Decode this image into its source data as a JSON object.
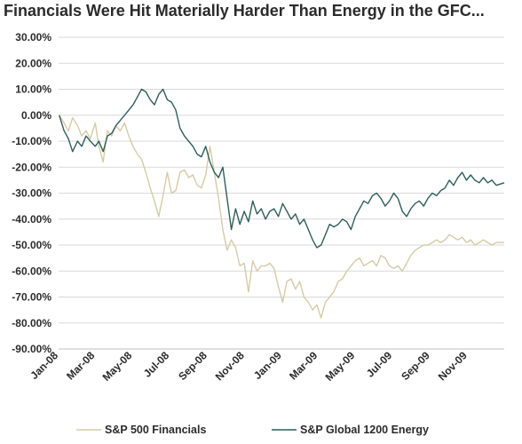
{
  "chart_data": {
    "type": "line",
    "title": "Financials Were Hit Materially Harder Than Energy in the GFC...",
    "xlabel": "",
    "ylabel": "",
    "ylim": [
      -90,
      30
    ],
    "y_ticks": [
      "30.00%",
      "20.00%",
      "10.00%",
      "0.00%",
      "-10.00%",
      "-20.00%",
      "-30.00%",
      "-40.00%",
      "-50.00%",
      "-60.00%",
      "-70.00%",
      "-80.00%",
      "-90.00%"
    ],
    "y_tick_values": [
      30,
      20,
      10,
      0,
      -10,
      -20,
      -30,
      -40,
      -50,
      -60,
      -70,
      -80,
      -90
    ],
    "x_ticks": [
      "Jan-08",
      "Mar-08",
      "May-08",
      "Jul-08",
      "Sep-08",
      "Nov-08",
      "Jan-09",
      "Mar-09",
      "May-09",
      "Jul-09",
      "Sep-09",
      "Nov-09"
    ],
    "x_tick_values": [
      "2008-01",
      "2008-03",
      "2008-05",
      "2008-07",
      "2008-09",
      "2008-11",
      "2009-01",
      "2009-03",
      "2009-05",
      "2009-07",
      "2009-09",
      "2009-11"
    ],
    "grid": "horizontal",
    "legend_position": "bottom",
    "colors": {
      "financials": "#d5cba6",
      "energy": "#2f5e5a",
      "grid": "#d9d9d9"
    },
    "series": [
      {
        "name": "S&P 500 Financials",
        "x": [
          "2008-01-02",
          "2008-01-10",
          "2008-01-17",
          "2008-01-24",
          "2008-02-01",
          "2008-02-08",
          "2008-02-15",
          "2008-02-22",
          "2008-03-01",
          "2008-03-07",
          "2008-03-14",
          "2008-03-21",
          "2008-03-28",
          "2008-04-04",
          "2008-04-11",
          "2008-04-18",
          "2008-04-25",
          "2008-05-02",
          "2008-05-09",
          "2008-05-16",
          "2008-05-23",
          "2008-05-30",
          "2008-06-06",
          "2008-06-13",
          "2008-06-20",
          "2008-06-27",
          "2008-07-04",
          "2008-07-11",
          "2008-07-18",
          "2008-07-25",
          "2008-08-01",
          "2008-08-08",
          "2008-08-15",
          "2008-08-22",
          "2008-08-29",
          "2008-09-05",
          "2008-09-12",
          "2008-09-19",
          "2008-09-26",
          "2008-10-03",
          "2008-10-10",
          "2008-10-17",
          "2008-10-24",
          "2008-10-31",
          "2008-11-07",
          "2008-11-14",
          "2008-11-21",
          "2008-11-28",
          "2008-12-05",
          "2008-12-12",
          "2008-12-19",
          "2008-12-26",
          "2009-01-02",
          "2009-01-09",
          "2009-01-16",
          "2009-01-23",
          "2009-01-30",
          "2009-02-06",
          "2009-02-13",
          "2009-02-20",
          "2009-02-27",
          "2009-03-06",
          "2009-03-13",
          "2009-03-20",
          "2009-03-27",
          "2009-04-03",
          "2009-04-10",
          "2009-04-17",
          "2009-04-24",
          "2009-05-01",
          "2009-05-08",
          "2009-05-15",
          "2009-05-22",
          "2009-05-29",
          "2009-06-05",
          "2009-06-12",
          "2009-06-19",
          "2009-06-26",
          "2009-07-03",
          "2009-07-10",
          "2009-07-17",
          "2009-07-24",
          "2009-07-31",
          "2009-08-07",
          "2009-08-14",
          "2009-08-21",
          "2009-08-28",
          "2009-09-04",
          "2009-09-11",
          "2009-09-18",
          "2009-09-25",
          "2009-10-02",
          "2009-10-09",
          "2009-10-16",
          "2009-10-23",
          "2009-10-30",
          "2009-11-06",
          "2009-11-13",
          "2009-11-20",
          "2009-11-27",
          "2009-12-04",
          "2009-12-11",
          "2009-12-18",
          "2009-12-31"
        ],
        "values": [
          0,
          -3,
          -6,
          -1,
          -4,
          -8,
          -6,
          -9,
          -3,
          -12,
          -18,
          -6,
          -8,
          -4,
          -6,
          -3,
          -8,
          -12,
          -15,
          -17,
          -22,
          -28,
          -33,
          -39,
          -31,
          -22,
          -30,
          -29,
          -22,
          -21,
          -24,
          -23,
          -27,
          -28,
          -23,
          -12,
          -22,
          -32,
          -44,
          -52,
          -48,
          -51,
          -58,
          -57,
          -68,
          -56,
          -60,
          -58,
          -58,
          -57,
          -59,
          -66,
          -72,
          -64,
          -63,
          -67,
          -64,
          -70,
          -72,
          -75,
          -73,
          -78,
          -72,
          -70,
          -68,
          -64,
          -63,
          -60,
          -58,
          -56,
          -55,
          -58,
          -57,
          -56,
          -58,
          -54,
          -55,
          -58,
          -59,
          -58,
          -60,
          -57,
          -54,
          -52,
          -51,
          -50,
          -50,
          -49,
          -48,
          -49,
          -48,
          -46,
          -47,
          -48,
          -47,
          -49,
          -48,
          -50,
          -49,
          -48,
          -49,
          -50,
          -49,
          -49
        ]
      },
      {
        "name": "S&P Global 1200 Energy",
        "x": [
          "2008-01-02",
          "2008-01-10",
          "2008-01-17",
          "2008-01-24",
          "2008-02-01",
          "2008-02-08",
          "2008-02-15",
          "2008-02-22",
          "2008-03-01",
          "2008-03-07",
          "2008-03-14",
          "2008-03-21",
          "2008-03-28",
          "2008-04-04",
          "2008-04-11",
          "2008-04-18",
          "2008-04-25",
          "2008-05-02",
          "2008-05-09",
          "2008-05-16",
          "2008-05-23",
          "2008-05-30",
          "2008-06-06",
          "2008-06-13",
          "2008-06-20",
          "2008-06-27",
          "2008-07-04",
          "2008-07-11",
          "2008-07-18",
          "2008-07-25",
          "2008-08-01",
          "2008-08-08",
          "2008-08-15",
          "2008-08-22",
          "2008-08-29",
          "2008-09-05",
          "2008-09-12",
          "2008-09-19",
          "2008-09-26",
          "2008-10-03",
          "2008-10-10",
          "2008-10-17",
          "2008-10-24",
          "2008-10-31",
          "2008-11-07",
          "2008-11-14",
          "2008-11-21",
          "2008-11-28",
          "2008-12-05",
          "2008-12-12",
          "2008-12-19",
          "2008-12-26",
          "2009-01-02",
          "2009-01-09",
          "2009-01-16",
          "2009-01-23",
          "2009-01-30",
          "2009-02-06",
          "2009-02-13",
          "2009-02-20",
          "2009-02-27",
          "2009-03-06",
          "2009-03-13",
          "2009-03-20",
          "2009-03-27",
          "2009-04-03",
          "2009-04-10",
          "2009-04-17",
          "2009-04-24",
          "2009-05-01",
          "2009-05-08",
          "2009-05-15",
          "2009-05-22",
          "2009-05-29",
          "2009-06-05",
          "2009-06-12",
          "2009-06-19",
          "2009-06-26",
          "2009-07-03",
          "2009-07-10",
          "2009-07-17",
          "2009-07-24",
          "2009-07-31",
          "2009-08-07",
          "2009-08-14",
          "2009-08-21",
          "2009-08-28",
          "2009-09-04",
          "2009-09-11",
          "2009-09-18",
          "2009-09-25",
          "2009-10-02",
          "2009-10-09",
          "2009-10-16",
          "2009-10-23",
          "2009-10-30",
          "2009-11-06",
          "2009-11-13",
          "2009-11-20",
          "2009-11-27",
          "2009-12-04",
          "2009-12-11",
          "2009-12-18",
          "2009-12-31"
        ],
        "values": [
          0,
          -6,
          -9,
          -14,
          -10,
          -12,
          -8,
          -10,
          -12,
          -10,
          -14,
          -8,
          -7,
          -4,
          -2,
          0,
          2,
          4,
          7,
          10,
          9,
          6,
          4,
          8,
          10,
          6,
          5,
          2,
          -5,
          -8,
          -10,
          -12,
          -15,
          -16,
          -12,
          -18,
          -22,
          -24,
          -20,
          -32,
          -44,
          -36,
          -42,
          -37,
          -41,
          -33,
          -38,
          -36,
          -40,
          -37,
          -36,
          -39,
          -34,
          -37,
          -40,
          -38,
          -42,
          -40,
          -44,
          -48,
          -51,
          -50,
          -46,
          -42,
          -43,
          -42,
          -40,
          -41,
          -44,
          -39,
          -36,
          -33,
          -34,
          -31,
          -30,
          -32,
          -35,
          -33,
          -30,
          -32,
          -37,
          -39,
          -36,
          -34,
          -33,
          -35,
          -32,
          -30,
          -31,
          -29,
          -28,
          -25,
          -27,
          -24,
          -22,
          -25,
          -23,
          -25,
          -26,
          -24,
          -26,
          -25,
          -27,
          -26
        ]
      }
    ]
  }
}
